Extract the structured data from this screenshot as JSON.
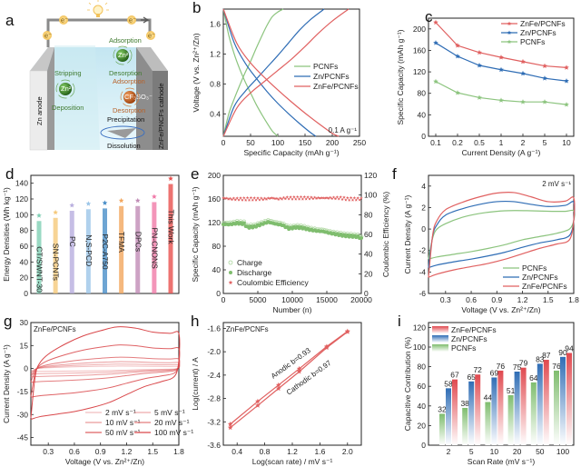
{
  "figure": {
    "panels": [
      "a",
      "b",
      "c",
      "d",
      "e",
      "f",
      "g",
      "h",
      "i"
    ]
  },
  "schematic": {
    "label": "a",
    "anode_label": "Zn anode",
    "cathode_label": "ZnFe/PNCFs cathode",
    "electron_symbol": "e⁻",
    "anode_top": "Stripping",
    "anode_bottom": "Deposition",
    "anode_ion": "Zn²⁺",
    "cathode_ion1_top": "Adsorption",
    "cathode_ion1_bottom": "Desorption",
    "cathode_ion1": "Zn²⁺",
    "cathode_ion2_top": "Adsorption",
    "cathode_ion2_bottom": "Desorption",
    "cathode_ion2": "CF₃SO₃⁻",
    "precipitation": "Precipitation",
    "dissolution": "Dissolution",
    "colors": {
      "zn_ion": "#2e7d1f",
      "anion": "#c0500f",
      "green_text": "#3f7a2e",
      "orange_text": "#b8622a",
      "blue_arrow": "#3a6fc0"
    }
  },
  "chart_data": [
    {
      "panel": "b",
      "type": "line",
      "title": "",
      "xlabel": "Specific Capacity (mAh g⁻¹)",
      "ylabel": "Voltage (V vs. Zn²⁺/Zn)",
      "xlim": [
        0,
        250
      ],
      "ylim": [
        0.1,
        1.8
      ],
      "xticks": [
        0,
        50,
        100,
        150,
        200,
        250
      ],
      "yticks": [
        0.4,
        0.8,
        1.2,
        1.6
      ],
      "annotation": "0.1 A g⁻¹",
      "legend_position": "center-right",
      "series": [
        {
          "name": "PCNFs",
          "color": "#8cc47e",
          "discharge": {
            "x": [
              0,
              10,
              20,
              30,
              40,
              50,
              60,
              70,
              80,
              90,
              100
            ],
            "y": [
              1.8,
              1.45,
              1.2,
              1.0,
              0.83,
              0.68,
              0.53,
              0.4,
              0.28,
              0.17,
              0.1
            ]
          },
          "charge": {
            "x": [
              0,
              10,
              20,
              30,
              40,
              50,
              60,
              70,
              80,
              90,
              100,
              110
            ],
            "y": [
              0.1,
              0.4,
              0.6,
              0.78,
              0.95,
              1.1,
              1.27,
              1.43,
              1.58,
              1.7,
              1.76,
              1.8
            ]
          }
        },
        {
          "name": "Zn/PCNFs",
          "color": "#2f6db5",
          "discharge": {
            "x": [
              0,
              20,
              40,
              60,
              80,
              100,
              120,
              140,
              160,
              170
            ],
            "y": [
              1.8,
              1.35,
              1.08,
              0.88,
              0.7,
              0.54,
              0.4,
              0.27,
              0.15,
              0.1
            ]
          },
          "charge": {
            "x": [
              0,
              20,
              40,
              60,
              80,
              100,
              120,
              140,
              160,
              185
            ],
            "y": [
              0.1,
              0.5,
              0.7,
              0.86,
              1.02,
              1.18,
              1.35,
              1.52,
              1.66,
              1.8
            ]
          }
        },
        {
          "name": "ZnFe/PCNFs",
          "color": "#e06060",
          "discharge": {
            "x": [
              0,
              25,
              50,
              75,
              100,
              125,
              150,
              175,
              200,
              212
            ],
            "y": [
              1.8,
              1.34,
              1.08,
              0.89,
              0.72,
              0.56,
              0.41,
              0.27,
              0.14,
              0.1
            ]
          },
          "charge": {
            "x": [
              0,
              25,
              50,
              75,
              100,
              125,
              150,
              175,
              200,
              230
            ],
            "y": [
              0.1,
              0.48,
              0.68,
              0.83,
              0.98,
              1.13,
              1.3,
              1.48,
              1.64,
              1.8
            ]
          }
        }
      ]
    },
    {
      "panel": "c",
      "type": "line",
      "xlabel": "Current Density (A g⁻¹)",
      "ylabel": "Specific Capacity (mAh g⁻¹)",
      "categories": [
        "0.1",
        "0.2",
        "0.5",
        "1",
        "2",
        "5",
        "10"
      ],
      "ylim": [
        0,
        220
      ],
      "yticks": [
        0,
        40,
        80,
        120,
        160,
        200
      ],
      "legend_position": "top-right",
      "series": [
        {
          "name": "ZnFe/PCNFs",
          "color": "#e06060",
          "values": [
            212,
            169,
            156,
            147,
            139,
            131,
            128
          ]
        },
        {
          "name": "Zn/PCNFs",
          "color": "#2f6db5",
          "values": [
            174,
            149,
            132,
            124,
            117,
            108,
            103
          ]
        },
        {
          "name": "PCNFs",
          "color": "#8cc47e",
          "values": [
            102,
            81,
            72,
            67,
            64,
            64,
            59
          ]
        }
      ]
    },
    {
      "panel": "d",
      "type": "bar",
      "xlabel": "",
      "ylabel": "Energy Densities (Wh kg⁻¹)",
      "ylim": [
        0,
        150
      ],
      "yticks": [
        0,
        20,
        40,
        60,
        80,
        100,
        120,
        140
      ],
      "categories": [
        "CT/SWNT-30",
        "SN-PCNTs",
        "PC",
        "N,S-PCD",
        "P2C-A750",
        "TFMA",
        "DPCs",
        "PN-CNONS",
        "This Work"
      ],
      "values": [
        92,
        96,
        105,
        107,
        108,
        111,
        111,
        116,
        139
      ],
      "colors": [
        "#7fcfb4",
        "#f5c97a",
        "#b8aede",
        "#9cc6e8",
        "#4a8fc8",
        "#f2a65e",
        "#c08bb5",
        "#f07aa8",
        "#e8504e"
      ]
    },
    {
      "panel": "e",
      "type": "scatter",
      "xlabel": "Number (n)",
      "ylabel": "Specific Capacity (mAh g⁻¹)",
      "ylabel_right": "Coulombic Efficiency (%)",
      "xlim": [
        0,
        20000
      ],
      "ylim": [
        0,
        200
      ],
      "ylim_right": [
        0,
        120
      ],
      "xticks": [
        0,
        5000,
        10000,
        15000,
        20000
      ],
      "yticks": [
        0,
        40,
        80,
        120,
        160,
        200
      ],
      "yticks_right": [
        0,
        20,
        40,
        60,
        80,
        100,
        120
      ],
      "legend_position": "bottom-left",
      "series": [
        {
          "name": "Charge",
          "marker": "open-circle",
          "color": "#a8d49a",
          "x": [
            0,
            1000,
            2000,
            3000,
            3500,
            4500,
            5500,
            6500,
            7500,
            8500,
            9500,
            10500,
            11500,
            12500,
            13500,
            14500,
            15500,
            16500,
            17500,
            18500,
            19500,
            20000
          ],
          "y": [
            118,
            118,
            120,
            119,
            113,
            114,
            118,
            122,
            119,
            117,
            111,
            113,
            112,
            109,
            107,
            106,
            103,
            101,
            99,
            98,
            97,
            94
          ]
        },
        {
          "name": "Discharge",
          "marker": "filled-circle",
          "color": "#7fbd6e",
          "x": [
            0,
            1000,
            2000,
            3000,
            3500,
            4500,
            5500,
            6500,
            7500,
            8500,
            9500,
            10500,
            11500,
            12500,
            13500,
            14500,
            15500,
            16500,
            17500,
            18500,
            19500,
            20000
          ],
          "y": [
            117,
            117,
            119,
            118,
            112,
            113,
            117,
            121,
            118,
            116,
            110,
            112,
            111,
            108,
            106,
            105,
            102,
            100,
            98,
            97,
            96,
            93
          ]
        },
        {
          "name": "Coulombic Efficiency",
          "marker": "star",
          "color": "#e06060",
          "axis": "right",
          "x": [
            0,
            1000,
            2000,
            3000,
            4000,
            5000,
            6000,
            7000,
            8000,
            9000,
            10000,
            11000,
            12000,
            13000,
            14000,
            15000,
            16000,
            17000,
            18000,
            19000,
            20000
          ],
          "y": [
            97,
            96,
            96,
            96,
            96,
            96,
            96,
            97,
            96,
            97,
            97,
            97,
            97,
            97,
            97,
            97,
            97,
            97,
            96,
            96,
            96
          ]
        }
      ]
    },
    {
      "panel": "f",
      "type": "line",
      "xlabel": "Voltage (V vs. Zn²⁺/Zn)",
      "ylabel": "Current Density (A g⁻¹)",
      "xlim": [
        0.1,
        1.8
      ],
      "ylim": [
        -6,
        5
      ],
      "xticks": [
        0.3,
        0.6,
        0.9,
        1.2,
        1.5,
        1.8
      ],
      "yticks": [
        -6,
        -4,
        -2,
        0,
        2,
        4
      ],
      "annotation": "2 mV s⁻¹",
      "legend_position": "bottom-right",
      "series": [
        {
          "name": "PCNFs",
          "color": "#8cc47e",
          "x": [
            0.1,
            0.15,
            0.2,
            0.3,
            0.5,
            0.7,
            0.9,
            1.1,
            1.3,
            1.5,
            1.7,
            1.8,
            1.8,
            1.75,
            1.6,
            1.4,
            1.2,
            1.0,
            0.8,
            0.6,
            0.4,
            0.2,
            0.1
          ],
          "y": [
            -2.8,
            -0.8,
            0.0,
            0.5,
            1.1,
            1.45,
            1.65,
            1.72,
            1.7,
            1.66,
            1.65,
            1.7,
            0.8,
            0.0,
            -0.4,
            -0.7,
            -1.0,
            -1.45,
            -1.8,
            -2.1,
            -2.35,
            -2.6,
            -2.8
          ]
        },
        {
          "name": "Zn/PCNFs",
          "color": "#2f6db5",
          "x": [
            0.1,
            0.15,
            0.2,
            0.3,
            0.5,
            0.7,
            0.9,
            1.1,
            1.3,
            1.5,
            1.7,
            1.8,
            1.8,
            1.75,
            1.6,
            1.4,
            1.2,
            1.0,
            0.8,
            0.6,
            0.4,
            0.2,
            0.1
          ],
          "y": [
            -3.6,
            -0.6,
            0.4,
            1.3,
            1.9,
            2.3,
            2.55,
            2.55,
            2.3,
            2.1,
            2.2,
            2.5,
            0.8,
            -0.6,
            -1.0,
            -1.3,
            -1.7,
            -2.15,
            -2.5,
            -2.8,
            -3.05,
            -3.35,
            -3.6
          ]
        },
        {
          "name": "ZnFe/PCNFs",
          "color": "#e06060",
          "x": [
            0.1,
            0.15,
            0.2,
            0.3,
            0.5,
            0.7,
            0.9,
            1.1,
            1.3,
            1.5,
            1.7,
            1.8,
            1.8,
            1.75,
            1.6,
            1.4,
            1.2,
            1.0,
            0.8,
            0.6,
            0.4,
            0.2,
            0.1
          ],
          "y": [
            -4.5,
            -0.5,
            0.8,
            1.8,
            2.5,
            3.0,
            3.35,
            3.4,
            3.0,
            2.55,
            2.6,
            2.9,
            0.8,
            -1.0,
            -1.4,
            -1.8,
            -2.3,
            -2.8,
            -3.2,
            -3.5,
            -3.8,
            -4.2,
            -4.5
          ]
        }
      ]
    },
    {
      "panel": "g",
      "type": "line",
      "title": "ZnFe/PCNFs",
      "xlabel": "Voltage (V vs. Zn²⁺/Zn)",
      "ylabel": "Current Density (A g⁻¹)",
      "xlim": [
        0.1,
        1.8
      ],
      "ylim": [
        -50,
        30
      ],
      "xticks": [
        0.3,
        0.6,
        0.9,
        1.2,
        1.5,
        1.8
      ],
      "yticks": [
        -45,
        -30,
        -15,
        0,
        15,
        30
      ],
      "legend_position": "bottom-right",
      "series": [
        {
          "name": "2 mV s⁻¹",
          "scale": 1,
          "opacity": 0.35
        },
        {
          "name": "5 mV s⁻¹",
          "scale": 1.8,
          "opacity": 0.45
        },
        {
          "name": "10 mV s⁻¹",
          "scale": 2.8,
          "opacity": 0.55
        },
        {
          "name": "20 mV s⁻¹",
          "scale": 4.6,
          "opacity": 0.7
        },
        {
          "name": "50 mV s⁻¹",
          "scale": 9.6,
          "opacity": 0.85
        },
        {
          "name": "100 mV s⁻¹",
          "scale": 17,
          "opacity": 1
        }
      ],
      "color": "#d9474a"
    },
    {
      "panel": "h",
      "type": "scatter",
      "title": "ZnFe/PCNFs",
      "xlabel": "Log(scan rate) / mV s⁻¹",
      "ylabel": "Log(current) / A",
      "xlim": [
        0.2,
        2.2
      ],
      "ylim": [
        -3.6,
        -1.5
      ],
      "xticks": [
        0.4,
        0.8,
        1.2,
        1.6,
        2.0
      ],
      "yticks": [
        -3.6,
        -3.2,
        -2.8,
        -2.4,
        -2.0,
        -1.6
      ],
      "color": "#e06060",
      "annotations": [
        "Anodic  b=0.93",
        "Cathodic  b=0.97"
      ],
      "series": [
        {
          "name": "Anodic",
          "b": 0.93,
          "x": [
            0.301,
            0.699,
            1.0,
            1.301,
            1.699,
            2.0
          ],
          "y": [
            -3.24,
            -2.85,
            -2.57,
            -2.29,
            -1.91,
            -1.65
          ]
        },
        {
          "name": "Cathodic",
          "b": 0.97,
          "x": [
            0.301,
            0.699,
            1.0,
            1.301,
            1.699,
            2.0
          ],
          "y": [
            -3.3,
            -2.92,
            -2.63,
            -2.34,
            -1.93,
            -1.66
          ]
        }
      ]
    },
    {
      "panel": "i",
      "type": "bar",
      "xlabel": "Scan Rate (mV s⁻¹)",
      "ylabel": "Capacitive Contribution (%)",
      "ylim": [
        0,
        125
      ],
      "yticks": [
        0,
        20,
        40,
        60,
        80,
        100,
        120
      ],
      "categories": [
        "2",
        "5",
        "10",
        "20",
        "50",
        "100"
      ],
      "legend_position": "top-left",
      "series": [
        {
          "name": "PCNFs",
          "color": "#7fbd6e",
          "values": [
            32,
            38,
            44,
            51,
            64,
            76
          ]
        },
        {
          "name": "Zn/PCNFs",
          "color": "#2f6db5",
          "values": [
            58,
            65,
            69,
            75,
            83,
            90
          ]
        },
        {
          "name": "ZnFe/PCNFs",
          "color": "#e0494f",
          "values": [
            67,
            72,
            76,
            79,
            87,
            94
          ]
        }
      ]
    }
  ]
}
